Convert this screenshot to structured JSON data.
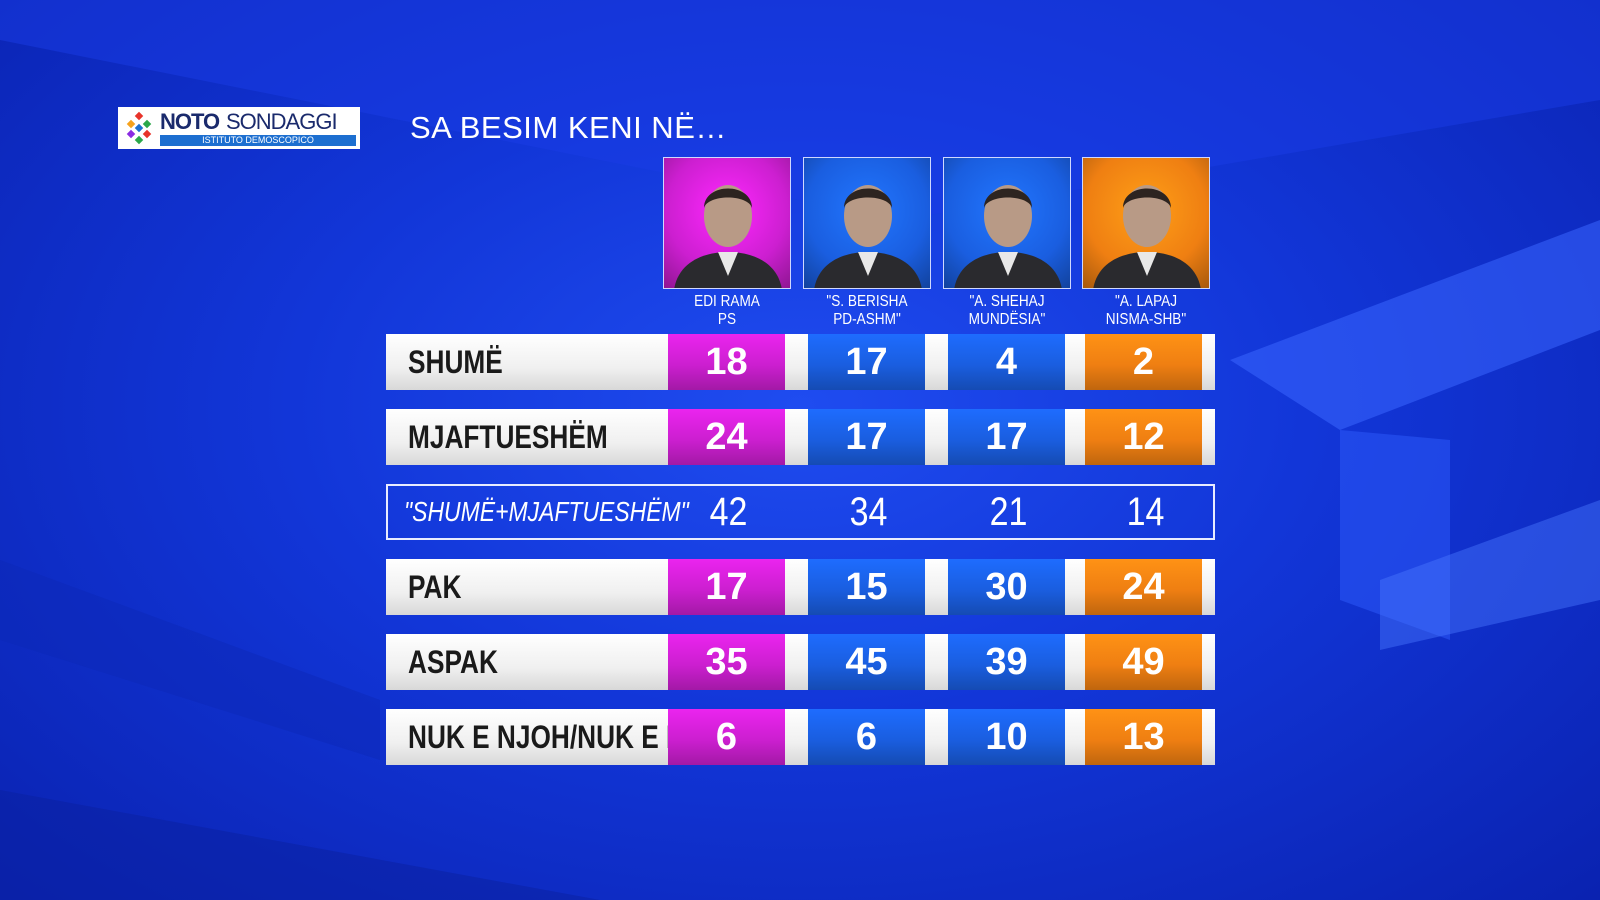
{
  "logo": {
    "brand_bold": "NOTO",
    "brand_light": "SONDAGGI",
    "subtitle": "ISTITUTO DEMOSCOPICO"
  },
  "title": "SA BESIM KENI NË…",
  "candidates": [
    {
      "name": "EDI RAMA",
      "party": "PS",
      "color": "#cc1fd0"
    },
    {
      "name": "\"S. BERISHA",
      "party": "PD-ASHM\"",
      "color": "#1a5ee0"
    },
    {
      "name": "\"A. SHEHAJ",
      "party": "MUNDËSIA\"",
      "color": "#1a5ee0"
    },
    {
      "name": "\"A. LAPAJ",
      "party": "NISMA-SHB\"",
      "color": "#ef7f12"
    }
  ],
  "rows": [
    {
      "label": "SHUMË",
      "values": [
        18,
        17,
        4,
        2
      ]
    },
    {
      "label": "MJAFTUESHËM",
      "values": [
        24,
        17,
        17,
        12
      ]
    },
    {
      "label": "\"SHUMË+MJAFTUESHËM\"",
      "values": [
        42,
        34,
        21,
        14
      ],
      "total": true
    },
    {
      "label": "PAK",
      "values": [
        17,
        15,
        30,
        24
      ]
    },
    {
      "label": "ASPAK",
      "values": [
        35,
        45,
        39,
        49
      ]
    },
    {
      "label": "NUK E NJOH/NUK E DI",
      "values": [
        6,
        6,
        10,
        13
      ]
    }
  ]
}
